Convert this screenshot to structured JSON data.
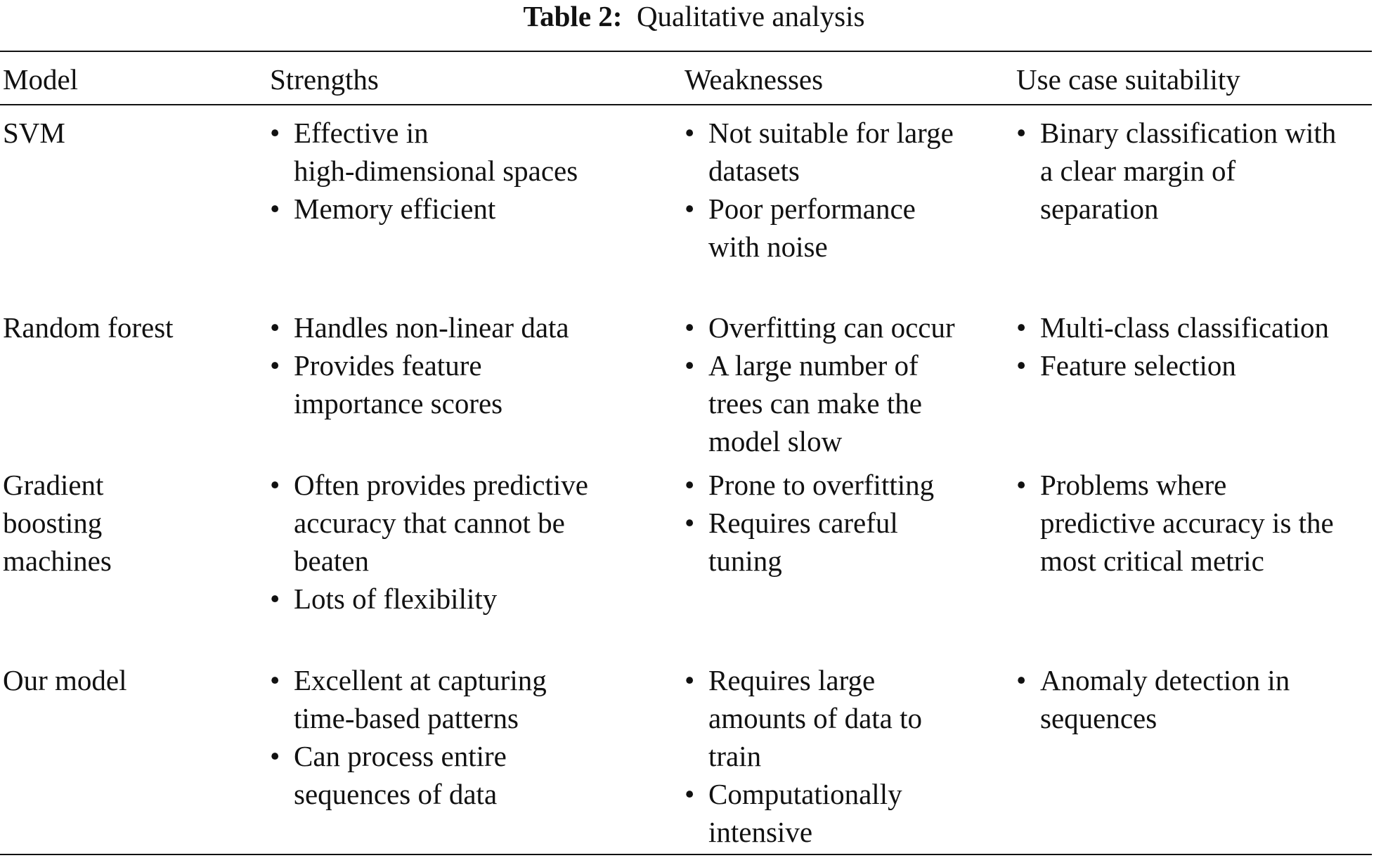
{
  "caption": {
    "label": "Table 2:",
    "text": "Qualitative analysis"
  },
  "headers": [
    "Model",
    "Strengths",
    "Weaknesses",
    "Use case suitability"
  ],
  "rows": [
    {
      "model": [
        "SVM"
      ],
      "strengths": [
        [
          "Effective in",
          "high-dimensional spaces"
        ],
        [
          "Memory efficient"
        ]
      ],
      "weaknesses": [
        [
          "Not suitable for large",
          "datasets"
        ],
        [
          "Poor performance",
          "with noise"
        ]
      ],
      "use": [
        [
          "Binary classification with",
          "a clear margin of",
          "separation"
        ]
      ]
    },
    {
      "model": [
        "Random forest"
      ],
      "strengths": [
        [
          "Handles non-linear data"
        ],
        [
          "Provides feature",
          "importance scores"
        ]
      ],
      "weaknesses": [
        [
          "Overfitting can occur"
        ],
        [
          "A large number of",
          "trees can make the",
          "model slow"
        ]
      ],
      "use": [
        [
          "Multi-class classification"
        ],
        [
          "Feature selection"
        ]
      ]
    },
    {
      "model": [
        "Gradient",
        "boosting",
        "machines"
      ],
      "strengths": [
        [
          "Often provides predictive",
          "accuracy that cannot be",
          "beaten"
        ],
        [
          "Lots of flexibility"
        ]
      ],
      "weaknesses": [
        [
          "Prone to overfitting"
        ],
        [
          "Requires careful",
          "tuning"
        ]
      ],
      "use": [
        [
          "Problems where",
          "predictive accuracy is the",
          "most critical metric"
        ]
      ]
    },
    {
      "model": [
        "Our model"
      ],
      "strengths": [
        [
          "Excellent at capturing",
          "time-based patterns"
        ],
        [
          "Can process entire",
          "sequences of data"
        ]
      ],
      "weaknesses": [
        [
          "Requires large",
          "amounts of data to",
          "train"
        ],
        [
          "Computationally",
          "intensive"
        ]
      ],
      "use": [
        [
          "Anomaly detection in",
          "sequences"
        ]
      ]
    }
  ]
}
